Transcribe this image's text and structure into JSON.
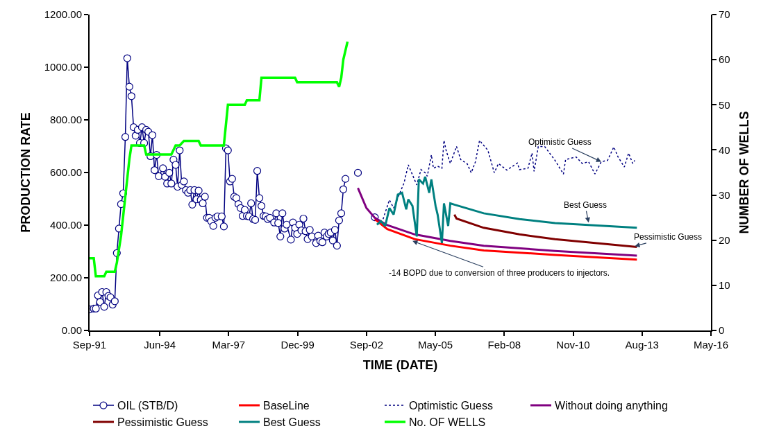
{
  "chart_data": {
    "type": "line",
    "xlabel": "TIME (DATE)",
    "ylabel": "PRODUCTION RATE",
    "y2label": "NUMBER OF WELLS",
    "xlim": [
      "1991-09-01",
      "2016-05-11"
    ],
    "xticks": [
      {
        "value": "1991-09-01",
        "label": "Sep-91"
      },
      {
        "value": "1994-06-16",
        "label": "Jun-94"
      },
      {
        "value": "1997-03-12",
        "label": "Mar-97"
      },
      {
        "value": "1999-12-07",
        "label": "Dec-99"
      },
      {
        "value": "2002-09-02",
        "label": "Sep-02"
      },
      {
        "value": "2005-05-29",
        "label": "May-05"
      },
      {
        "value": "2008-02-23",
        "label": "Feb-08"
      },
      {
        "value": "2010-11-19",
        "label": "Nov-10"
      },
      {
        "value": "2013-08-15",
        "label": "Aug-13"
      },
      {
        "value": "2016-05-11",
        "label": "May-16"
      }
    ],
    "ylim": [
      0,
      1200
    ],
    "yticks": [
      {
        "value": 0,
        "label": "0.00"
      },
      {
        "value": 200,
        "label": "200.00"
      },
      {
        "value": 400,
        "label": "400.00"
      },
      {
        "value": 600,
        "label": "600.00"
      },
      {
        "value": 800,
        "label": "800.00"
      },
      {
        "value": 1000,
        "label": "1000.00"
      },
      {
        "value": 1200,
        "label": "1200.00"
      }
    ],
    "y2lim": [
      0,
      70
    ],
    "y2ticks": [
      0,
      10,
      20,
      30,
      40,
      50,
      60,
      70
    ],
    "legend": "bottom",
    "series": [
      {
        "name": "OIL (STB/D)",
        "color": "#000080",
        "marker": "circle",
        "line_style": "solid",
        "x": [
          "1991-09",
          "1991-11",
          "1991-12",
          "1992-01",
          "1992-02",
          "1992-03",
          "1992-04",
          "1992-05",
          "1992-06",
          "1992-07",
          "1992-08",
          "1992-09",
          "1992-10",
          "1992-11",
          "1992-12",
          "1993-01",
          "1993-02",
          "1993-03",
          "1993-04",
          "1993-05",
          "1993-06",
          "1993-07",
          "1993-08",
          "1993-09",
          "1993-10",
          "1993-11",
          "1993-12",
          "1994-01",
          "1994-02",
          "1994-03",
          "1994-04",
          "1994-05",
          "1994-06",
          "1994-08",
          "1994-09",
          "1994-10",
          "1994-11",
          "1994-12",
          "1995-01",
          "1995-02",
          "1995-03",
          "1995-04",
          "1995-05",
          "1995-06",
          "1995-07",
          "1995-08",
          "1995-09",
          "1995-10",
          "1995-11",
          "1995-12",
          "1996-01",
          "1996-02",
          "1996-03",
          "1996-04",
          "1996-05",
          "1996-06",
          "1996-07",
          "1996-08",
          "1996-09",
          "1996-10",
          "1996-12",
          "1997-01",
          "1997-02",
          "1997-03",
          "1997-04",
          "1997-05",
          "1997-06",
          "1997-07",
          "1997-08",
          "1997-09",
          "1997-10",
          "1997-11",
          "1997-12",
          "1998-01",
          "1998-02",
          "1998-03",
          "1998-04",
          "1998-05",
          "1998-06",
          "1998-07",
          "1998-08",
          "1998-09",
          "1998-10",
          "1998-11",
          "1999-01",
          "1999-02",
          "1999-03",
          "1999-04",
          "1999-05",
          "1999-06",
          "1999-07",
          "1999-09",
          "1999-10",
          "1999-11",
          "1999-12",
          "2000-01",
          "2000-02",
          "2000-03",
          "2000-04",
          "2000-05",
          "2000-06",
          "2000-07",
          "2000-09",
          "2000-10",
          "2000-11",
          "2000-12",
          "2001-01",
          "2001-02",
          "2001-03",
          "2001-04",
          "2001-05",
          "2001-06",
          "2001-07",
          "2001-08",
          "2001-09",
          "2001-10",
          "2001-11",
          "2002-02",
          "2002-05",
          "2002-08",
          "2003-01"
        ],
        "values": [
          80,
          83,
          83,
          133,
          108,
          146,
          90,
          146,
          131,
          126,
          98,
          111,
          294,
          387,
          480,
          521,
          735,
          1034,
          926,
          890,
          772,
          740,
          762,
          712,
          772,
          712,
          762,
          755,
          662,
          742,
          609,
          667,
          586,
          616,
          584,
          558,
          599,
          558,
          649,
          629,
          546,
          684,
          553,
          566,
          533,
          523,
          533,
          478,
          533,
          498,
          531,
          496,
          483,
          508,
          428,
          428,
          415,
          397,
          428,
          433,
          433,
          395,
          692,
          684,
          566,
          576,
          508,
          503,
          480,
          465,
          435,
          458,
          435,
          433,
          483,
          423,
          420,
          606,
          503,
          473,
          435,
          433,
          423,
          428,
          410,
          445,
          408,
          357,
          445,
          387,
          402,
          345,
          410,
          390,
          367,
          402,
          380,
          425,
          377,
          347,
          382,
          357,
          332,
          360,
          340,
          335,
          372,
          357,
          367,
          372,
          342,
          382,
          322,
          418,
          445,
          536,
          576,
          null,
          599,
          null,
          430
        ]
      },
      {
        "name": "BaseLine",
        "color": "#ff0000",
        "marker": "none",
        "line_style": "solid",
        "x": [
          "2003-01",
          "2003-07",
          "2004-08",
          "2006-01",
          "2007-05",
          "2010-03",
          "2013-06"
        ],
        "values": [
          423,
          385,
          347,
          322,
          304,
          287,
          269
        ]
      },
      {
        "name": "Optimistic Guess",
        "color": "#000080",
        "marker": "none",
        "line_style": "dotted",
        "x": [
          "2003-05",
          "2003-08",
          "2003-10",
          "2004-01",
          "2004-03",
          "2004-05",
          "2004-07",
          "2004-09",
          "2004-11",
          "2005-01",
          "2005-02",
          "2005-04",
          "2005-05",
          "2005-07",
          "2005-09",
          "2005-10",
          "2005-11",
          "2006-01",
          "2006-04",
          "2006-06",
          "2006-09",
          "2006-11",
          "2007-01",
          "2007-03",
          "2007-07",
          "2007-10",
          "2007-12",
          "2008-04",
          "2008-09",
          "2008-10",
          "2009-02",
          "2009-04",
          "2009-05",
          "2009-07",
          "2009-10",
          "2010-03",
          "2010-07",
          "2010-08",
          "2011-01",
          "2011-04",
          "2011-07",
          "2011-10",
          "2012-01",
          "2012-04",
          "2012-07",
          "2012-09",
          "2012-12",
          "2013-02",
          "2013-04",
          "2013-05"
        ],
        "values": [
          423,
          496,
          465,
          523,
          561,
          629,
          591,
          553,
          611,
          599,
          586,
          667,
          616,
          624,
          616,
          722,
          684,
          634,
          699,
          649,
          634,
          599,
          641,
          722,
          684,
          599,
          634,
          609,
          636,
          611,
          616,
          674,
          604,
          699,
          699,
          646,
          594,
          649,
          659,
          634,
          641,
          594,
          641,
          646,
          697,
          659,
          621,
          674,
          634,
          646
        ]
      },
      {
        "name": "Without doing anything",
        "color": "#800080",
        "marker": "none",
        "line_style": "solid",
        "x": [
          "2002-05",
          "2002-09",
          "2003-01",
          "2003-07",
          "2004-08",
          "2006-01",
          "2007-05",
          "2010-03",
          "2013-06"
        ],
        "values": [
          541,
          465,
          428,
          400,
          365,
          340,
          322,
          302,
          284
        ]
      },
      {
        "name": "Pessimistic Guess",
        "color": "#800000",
        "marker": "none",
        "line_style": "solid",
        "x": [
          "2006-03",
          "2006-04",
          "2007-05",
          "2008-10",
          "2010-03",
          "2013-06"
        ],
        "values": [
          440,
          425,
          390,
          365,
          347,
          317
        ]
      },
      {
        "name": "Best Guess",
        "color": "#008080",
        "marker": "none",
        "line_style": "solid",
        "x": [
          "2003-02",
          "2003-04",
          "2003-06",
          "2003-08",
          "2003-10",
          "2003-12",
          "2004-02",
          "2004-04",
          "2004-05",
          "2004-07",
          "2004-09",
          "2004-10",
          "2004-12",
          "2005-01",
          "2005-03",
          "2005-04",
          "2005-06",
          "2005-07",
          "2005-09",
          "2005-10",
          "2005-12",
          "2006-01",
          "2006-03",
          "2007-05",
          "2008-10",
          "2010-03",
          "2013-06"
        ],
        "values": [
          402,
          415,
          397,
          465,
          440,
          516,
          523,
          460,
          498,
          473,
          357,
          574,
          558,
          584,
          523,
          574,
          473,
          440,
          332,
          483,
          397,
          483,
          478,
          445,
          423,
          408,
          390
        ]
      },
      {
        "name": "No. OF WELLS",
        "color": "#00ff00",
        "marker": "none",
        "line_style": "solid",
        "axis": "y2",
        "x": [
          "1991-09",
          "1991-11",
          "1991-12",
          "1992-04",
          "1992-05",
          "1992-09",
          "1992-10",
          "1992-12",
          "1993-04",
          "1993-05",
          "1993-11",
          "1993-12",
          "1994-12",
          "1995-02",
          "1995-04",
          "1995-06",
          "1996-01",
          "1996-02",
          "1997-01",
          "1997-03",
          "1997-11",
          "1997-12",
          "1998-06",
          "1998-07",
          "1999-11",
          "1999-12",
          "2001-07",
          "2001-08",
          "2001-09",
          "2001-10",
          "2001-12"
        ],
        "values": [
          16,
          16,
          12,
          12,
          13,
          13,
          15,
          21,
          38,
          41,
          41,
          39,
          39,
          41,
          41,
          42,
          42,
          41,
          41,
          50,
          50,
          51,
          51,
          56,
          56,
          55,
          55,
          54,
          56,
          60,
          64
        ]
      }
    ],
    "annotations": [
      {
        "text": "Optimistic Guess",
        "x": "2012-01",
        "y": 641
      },
      {
        "text": "Best Guess",
        "x": "2011-07",
        "y": 410
      },
      {
        "text": "Pessimistic Guess",
        "x": "2013-05",
        "y": 320
      },
      {
        "text": "-14 BOPD due to conversion of three producers to injectors.",
        "x": "2004-07",
        "y": 340
      }
    ]
  }
}
